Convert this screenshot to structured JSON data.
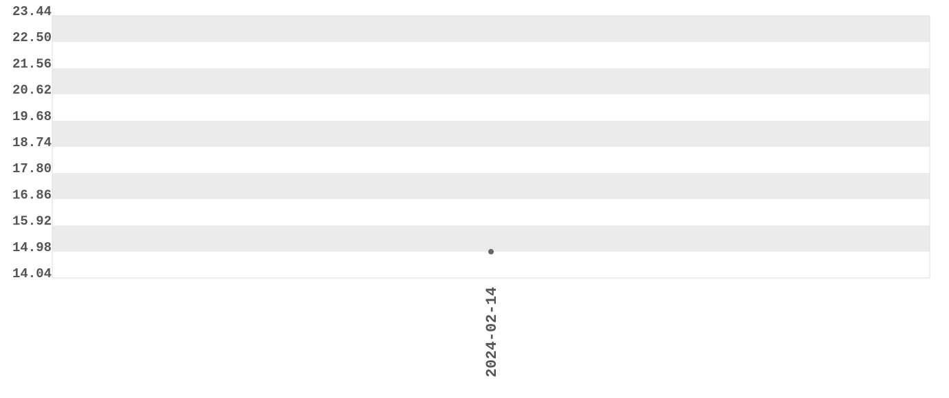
{
  "chart_data": {
    "type": "scatter",
    "title": "",
    "xlabel": "",
    "ylabel": "",
    "x": [
      "2024-02-14"
    ],
    "series": [
      {
        "values": [
          14.98
        ]
      }
    ],
    "ylim": [
      14.04,
      23.44
    ],
    "yticks": [
      "14.04",
      "14.98",
      "15.92",
      "16.86",
      "17.80",
      "18.74",
      "19.68",
      "20.62",
      "21.56",
      "22.50",
      "23.44"
    ],
    "xticks": [
      "2024-02-14"
    ],
    "grid": "alternating horizontal bands",
    "legend": "none",
    "colors": {
      "band": "#ebebeb",
      "point": "#666666",
      "text": "#555555",
      "border": "#dddddd"
    }
  }
}
